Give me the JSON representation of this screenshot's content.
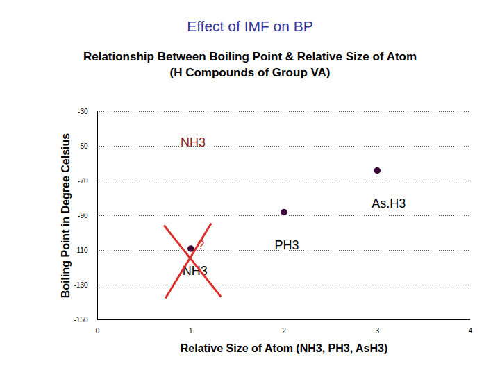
{
  "chart_data": {
    "type": "scatter",
    "page_title": "Effect of IMF on BP",
    "title": "Relationship Between Boiling Point & Relative Size of Atom",
    "subtitle": "(H Compounds of Group VA)",
    "x_label": "Relative Size of Atom (NH3, PH3, AsH3)",
    "y_label": "Boiling Point in Degree Celsius",
    "x": [
      1,
      2,
      3
    ],
    "values": [
      -109,
      -88,
      -64
    ],
    "color": "#3b0a3b",
    "marker": "circle",
    "xlim": [
      0,
      4
    ],
    "xticks": [
      0,
      1,
      2,
      3,
      4
    ],
    "ylim": [
      -150,
      -30
    ],
    "yticks": [
      -150,
      -130,
      -110,
      -90,
      -70,
      -50,
      -30
    ],
    "grid": true,
    "annotations": [
      {
        "text": "NH3",
        "x": 0.89,
        "y": -48,
        "color": "#8b1a1a"
      },
      {
        "text": "?",
        "x": 1.07,
        "y": -107,
        "color": "#cc3333"
      },
      {
        "text": "NH3",
        "x": 0.91,
        "y": -122,
        "color": "#000000"
      },
      {
        "text": "PH3",
        "x": 1.9,
        "y": -107,
        "color": "#000000"
      },
      {
        "text": "As.H3",
        "x": 2.94,
        "y": -83,
        "color": "#000000"
      }
    ]
  }
}
